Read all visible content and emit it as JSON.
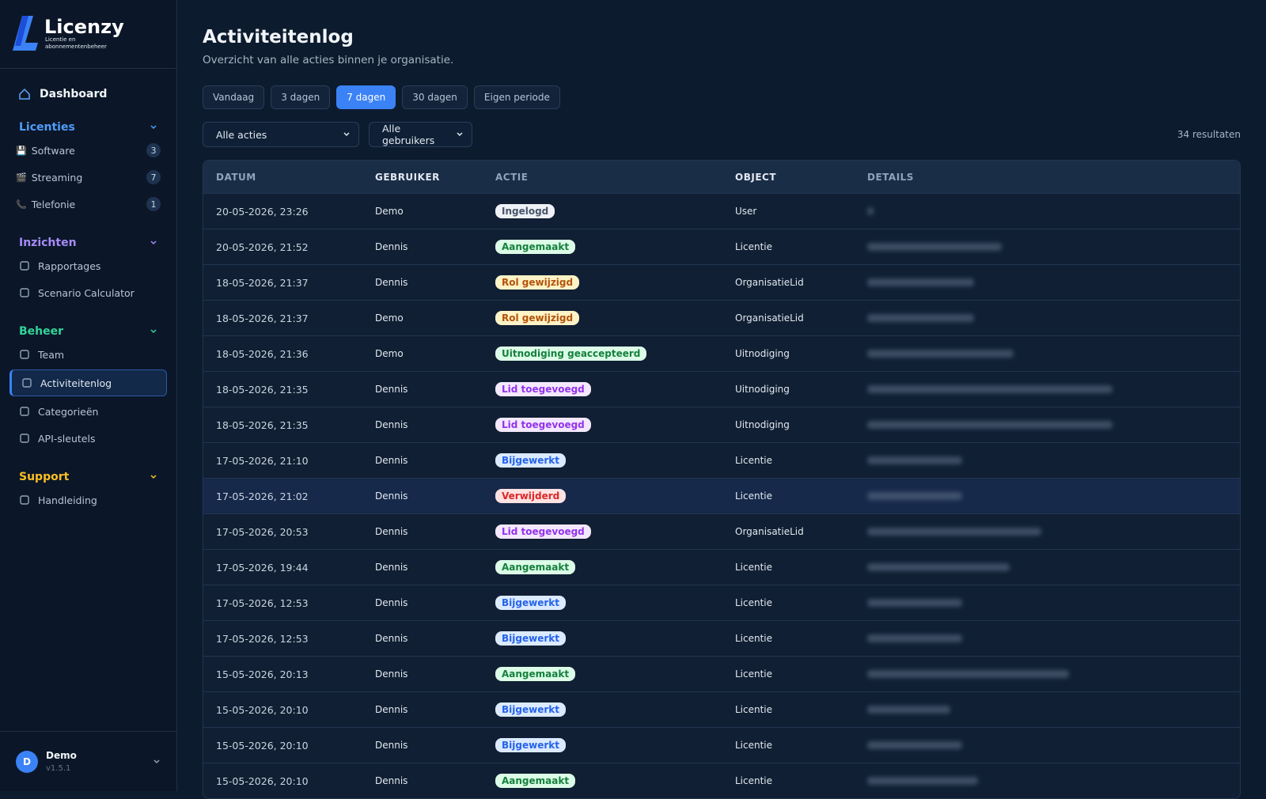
{
  "brand": {
    "name": "Licenzy",
    "tagline": "Licentie en abonnementenbeheer"
  },
  "nav": {
    "dashboard": "Dashboard",
    "sections": [
      {
        "title": "Licenties",
        "color": "#4f9cf9",
        "items": [
          {
            "label": "Software",
            "emoji": "💾",
            "count": 3
          },
          {
            "label": "Streaming",
            "emoji": "🎬",
            "count": 7
          },
          {
            "label": "Telefonie",
            "emoji": "📞",
            "count": 1
          }
        ]
      },
      {
        "title": "Inzichten",
        "color": "#a78bfa",
        "items": [
          {
            "label": "Rapportages"
          },
          {
            "label": "Scenario Calculator"
          }
        ]
      },
      {
        "title": "Beheer",
        "color": "#34d399",
        "items": [
          {
            "label": "Team"
          },
          {
            "label": "Activiteitenlog",
            "active": true
          },
          {
            "label": "Categorieën"
          },
          {
            "label": "API-sleutels"
          }
        ]
      },
      {
        "title": "Support",
        "color": "#fbbf24",
        "items": [
          {
            "label": "Handleiding"
          }
        ]
      }
    ]
  },
  "user": {
    "initial": "D",
    "name": "Demo",
    "version": "v1.5.1"
  },
  "header": {
    "title": "Activiteitenlog",
    "subtitle": "Overzicht van alle acties binnen je organisatie."
  },
  "filters": {
    "periods": [
      "Vandaag",
      "3 dagen",
      "7 dagen",
      "30 dagen",
      "Eigen periode"
    ],
    "active": 2,
    "selects": [
      "Alle acties",
      "Alle gebruikers"
    ],
    "result_count": "34 resultaten"
  },
  "table": {
    "columns": [
      "DATUM",
      "GEBRUIKER",
      "ACTIE",
      "OBJECT",
      "DETAILS"
    ],
    "hover_row": 8,
    "rows": [
      {
        "date": "20-05-2026, 23:26",
        "user": "Demo",
        "action": "Ingelogd",
        "tone": "gray",
        "object": "User"
      },
      {
        "date": "20-05-2026, 21:52",
        "user": "Dennis",
        "action": "Aangemaakt",
        "tone": "green",
        "object": "Licentie"
      },
      {
        "date": "18-05-2026, 21:37",
        "user": "Dennis",
        "action": "Rol gewijzigd",
        "tone": "amber",
        "object": "OrganisatieLid"
      },
      {
        "date": "18-05-2026, 21:37",
        "user": "Demo",
        "action": "Rol gewijzigd",
        "tone": "amber",
        "object": "OrganisatieLid"
      },
      {
        "date": "18-05-2026, 21:36",
        "user": "Demo",
        "action": "Uitnodiging geaccepteerd",
        "tone": "green",
        "object": "Uitnodiging"
      },
      {
        "date": "18-05-2026, 21:35",
        "user": "Dennis",
        "action": "Lid toegevoegd",
        "tone": "purple",
        "object": "Uitnodiging"
      },
      {
        "date": "18-05-2026, 21:35",
        "user": "Dennis",
        "action": "Lid toegevoegd",
        "tone": "purple",
        "object": "Uitnodiging"
      },
      {
        "date": "17-05-2026, 21:10",
        "user": "Dennis",
        "action": "Bijgewerkt",
        "tone": "blue",
        "object": "Licentie"
      },
      {
        "date": "17-05-2026, 21:02",
        "user": "Dennis",
        "action": "Verwijderd",
        "tone": "red",
        "object": "Licentie"
      },
      {
        "date": "17-05-2026, 20:53",
        "user": "Dennis",
        "action": "Lid toegevoegd",
        "tone": "purple",
        "object": "OrganisatieLid"
      },
      {
        "date": "17-05-2026, 19:44",
        "user": "Dennis",
        "action": "Aangemaakt",
        "tone": "green",
        "object": "Licentie"
      },
      {
        "date": "17-05-2026, 12:53",
        "user": "Dennis",
        "action": "Bijgewerkt",
        "tone": "blue",
        "object": "Licentie"
      },
      {
        "date": "17-05-2026, 12:53",
        "user": "Dennis",
        "action": "Bijgewerkt",
        "tone": "blue",
        "object": "Licentie"
      },
      {
        "date": "15-05-2026, 20:13",
        "user": "Dennis",
        "action": "Aangemaakt",
        "tone": "green",
        "object": "Licentie"
      },
      {
        "date": "15-05-2026, 20:10",
        "user": "Dennis",
        "action": "Bijgewerkt",
        "tone": "blue",
        "object": "Licentie"
      },
      {
        "date": "15-05-2026, 20:10",
        "user": "Dennis",
        "action": "Bijgewerkt",
        "tone": "blue",
        "object": "Licentie"
      },
      {
        "date": "15-05-2026, 20:10",
        "user": "Dennis",
        "action": "Aangemaakt",
        "tone": "green",
        "object": "Licentie"
      }
    ]
  }
}
